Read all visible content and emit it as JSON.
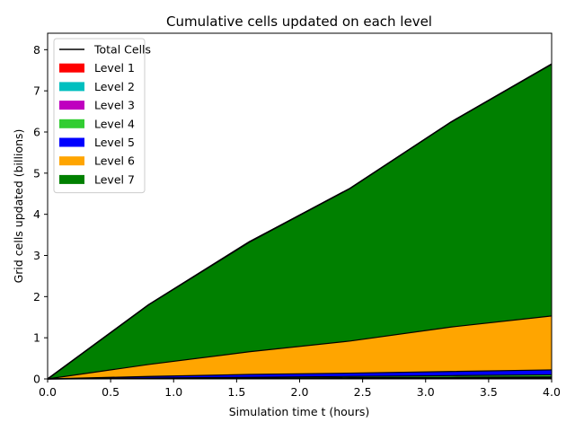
{
  "chart_data": {
    "type": "area",
    "title": "Cumulative cells updated on each level",
    "xlabel": "Simulation time t (hours)",
    "ylabel": "Grid cells updated (billions)",
    "xlim": [
      0,
      4
    ],
    "ylim": [
      0,
      8.4
    ],
    "xticks": [
      0.0,
      0.5,
      1.0,
      1.5,
      2.0,
      2.5,
      3.0,
      3.5,
      4.0
    ],
    "xtick_labels": [
      "0.0",
      "0.5",
      "1.0",
      "1.5",
      "2.0",
      "2.5",
      "3.0",
      "3.5",
      "4.0"
    ],
    "yticks": [
      0,
      1,
      2,
      3,
      4,
      5,
      6,
      7,
      8
    ],
    "ytick_labels": [
      "0",
      "1",
      "2",
      "3",
      "4",
      "5",
      "6",
      "7",
      "8"
    ],
    "grid": false,
    "legend_position": "upper-left",
    "stacked": true,
    "x": [
      0,
      0.8,
      1.6,
      2.4,
      3.2,
      4.0
    ],
    "series": [
      {
        "name": "Level 1",
        "color": "#ff0000",
        "values": [
          0,
          0.003,
          0.006,
          0.009,
          0.012,
          0.015
        ]
      },
      {
        "name": "Level 2",
        "color": "#00bfbf",
        "values": [
          0,
          0.003,
          0.006,
          0.009,
          0.012,
          0.015
        ]
      },
      {
        "name": "Level 3",
        "color": "#bf00bf",
        "values": [
          0,
          0.004,
          0.008,
          0.012,
          0.016,
          0.02
        ]
      },
      {
        "name": "Level 4",
        "color": "#32cd32",
        "values": [
          0,
          0.01,
          0.02,
          0.03,
          0.04,
          0.05
        ]
      },
      {
        "name": "Level 5",
        "color": "#0000ff",
        "values": [
          0,
          0.04,
          0.07,
          0.08,
          0.1,
          0.12
        ]
      },
      {
        "name": "Level 6",
        "color": "#ffa500",
        "values": [
          0,
          0.29,
          0.55,
          0.78,
          1.08,
          1.31
        ]
      },
      {
        "name": "Level 7",
        "color": "#008000",
        "values": [
          0,
          1.45,
          2.66,
          3.71,
          4.98,
          6.12
        ]
      }
    ],
    "total": {
      "name": "Total Cells",
      "color": "#000000",
      "values": [
        0,
        1.8,
        3.33,
        4.63,
        6.24,
        7.65
      ]
    }
  }
}
